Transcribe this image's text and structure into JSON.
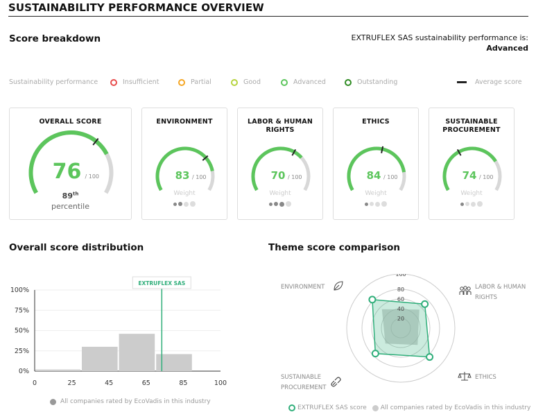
{
  "header": {
    "title": "SUSTAINABILITY PERFORMANCE OVERVIEW"
  },
  "score_breakdown": {
    "title": "Score breakdown",
    "performance_text": "EXTRUFLEX SAS sustainability performance is:",
    "performance_level": "Advanced"
  },
  "legend": {
    "label": "Sustainability performance",
    "levels": [
      {
        "label": "Insufficient",
        "color": "#e84b4b"
      },
      {
        "label": "Partial",
        "color": "#f5a623"
      },
      {
        "label": "Good",
        "color": "#b5d33d"
      },
      {
        "label": "Advanced",
        "color": "#5cc55c"
      },
      {
        "label": "Outstanding",
        "color": "#2e8b22"
      }
    ],
    "average_label": "Average score"
  },
  "cards": [
    {
      "title": "OVERALL SCORE",
      "score": 76,
      "out_of": "/ 100",
      "percentile": "89",
      "percentile_suffix": "th",
      "percentile_label": "percentile"
    },
    {
      "title": "ENVIRONMENT",
      "score": 83,
      "out_of": "/ 100",
      "weight_label": "Weight",
      "weight_level": 2
    },
    {
      "title": "LABOR & HUMAN RIGHTS",
      "title_lines": [
        "LABOR & HUMAN",
        "RIGHTS"
      ],
      "score": 70,
      "out_of": "/ 100",
      "weight_label": "Weight",
      "weight_level": 3
    },
    {
      "title": "ETHICS",
      "score": 84,
      "out_of": "/ 100",
      "weight_label": "Weight",
      "weight_level": 1
    },
    {
      "title": "SUSTAINABLE PROCUREMENT",
      "title_lines": [
        "SUSTAINABLE",
        "PROCUREMENT"
      ],
      "score": 74,
      "out_of": "/ 100",
      "weight_label": "Weight",
      "weight_level": 1
    }
  ],
  "distribution": {
    "title": "Overall score distribution",
    "company_label": "EXTRUFLEX SAS",
    "legend_label": "All companies rated by EcoVadis in this industry"
  },
  "comparison": {
    "title": "Theme score comparison",
    "legend_company": "EXTRUFLEX SAS score",
    "legend_industry": "All companies rated by EcoVadis in this industry"
  },
  "colors": {
    "accent": "#5cc55c",
    "radar": "#2fae7a",
    "gauge_bg": "#d8d8d8",
    "bar": "#cccccc"
  },
  "icons": [
    "leaf-icon",
    "people-icon",
    "scales-icon",
    "link-icon"
  ],
  "chart_data": [
    {
      "type": "bar",
      "title": "Overall score distribution",
      "x_ticks": [
        "0",
        "25",
        "45",
        "65",
        "85",
        "100"
      ],
      "y_ticks": [
        "100%",
        "75%",
        "50%",
        "25%",
        "0%"
      ],
      "bins": [
        {
          "from": 0,
          "to": 25,
          "value": 2
        },
        {
          "from": 25,
          "to": 45,
          "value": 30
        },
        {
          "from": 45,
          "to": 65,
          "value": 46
        },
        {
          "from": 65,
          "to": 85,
          "value": 21
        },
        {
          "from": 85,
          "to": 100,
          "value": 0
        }
      ],
      "ylim": [
        0,
        100
      ],
      "marker": {
        "label": "EXTRUFLEX SAS",
        "value": 76
      }
    },
    {
      "type": "radar",
      "title": "Theme score comparison",
      "axes": [
        "ENVIRONMENT",
        "LABOR & HUMAN RIGHTS",
        "ETHICS",
        "SUSTAINABLE PROCUREMENT"
      ],
      "ticks": [
        "20",
        "40",
        "60",
        "80",
        "100"
      ],
      "series": [
        {
          "name": "EXTRUFLEX SAS score",
          "values": [
            83,
            70,
            84,
            74
          ]
        },
        {
          "name": "All companies rated by EcoVadis in this industry",
          "values": [
            55,
            54,
            49,
            45
          ]
        }
      ]
    }
  ]
}
